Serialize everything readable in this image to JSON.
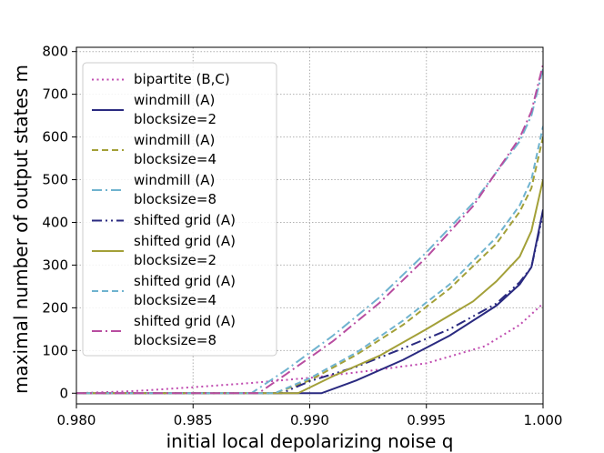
{
  "chart_data": {
    "type": "line",
    "title": "",
    "xlabel": "initial local depolarizing noise q",
    "ylabel": "maximal number of output states m",
    "xlim": [
      0.98,
      1.0
    ],
    "ylim": [
      -25,
      810
    ],
    "xticks": [
      0.98,
      0.985,
      0.99,
      0.995,
      1.0
    ],
    "xtick_labels": [
      "0.980",
      "0.985",
      "0.990",
      "0.995",
      "1.000"
    ],
    "yticks": [
      0,
      100,
      200,
      300,
      400,
      500,
      600,
      700,
      800
    ],
    "ytick_labels": [
      "0",
      "100",
      "200",
      "300",
      "400",
      "500",
      "600",
      "700",
      "800"
    ],
    "grid": true,
    "legend_position": "top-left",
    "series": [
      {
        "name": "bipartite (B,C)",
        "label_lines": [
          "bipartite (B,C)"
        ],
        "color": "#c04cb0",
        "style": "dotted",
        "x": [
          0.98,
          0.9825,
          0.985,
          0.9875,
          0.99,
          0.9925,
          0.995,
          0.9975,
          0.999,
          1.0
        ],
        "y": [
          0,
          5,
          14,
          24,
          36,
          52,
          70,
          110,
          160,
          210
        ]
      },
      {
        "name": "windmill (A) blocksize=2",
        "label_lines": [
          "windmill (A)",
          "blocksize=2"
        ],
        "color": "#2a2a80",
        "style": "solid",
        "x": [
          0.98,
          0.9905,
          0.992,
          0.994,
          0.996,
          0.998,
          0.999,
          0.9995,
          1.0
        ],
        "y": [
          0,
          0,
          30,
          78,
          135,
          205,
          255,
          295,
          430
        ]
      },
      {
        "name": "windmill (A) blocksize=4",
        "label_lines": [
          "windmill (A)",
          "blocksize=4"
        ],
        "color": "#a3a038",
        "style": "dashed",
        "x": [
          0.98,
          0.9885,
          0.99,
          0.992,
          0.994,
          0.996,
          0.998,
          0.999,
          0.9995,
          1.0
        ],
        "y": [
          0,
          0,
          30,
          90,
          160,
          245,
          350,
          425,
          480,
          600
        ]
      },
      {
        "name": "windmill (A) blocksize=8",
        "label_lines": [
          "windmill (A)",
          "blocksize=8"
        ],
        "color": "#6fb3cf",
        "style": "dashdot",
        "x": [
          0.98,
          0.9875,
          0.989,
          0.991,
          0.993,
          0.995,
          0.997,
          0.999,
          0.9995,
          1.0
        ],
        "y": [
          0,
          0,
          55,
          135,
          225,
          330,
          445,
          590,
          650,
          760
        ]
      },
      {
        "name": "shifted grid (A)",
        "label_lines": [
          "shifted grid (A)"
        ],
        "color": "#2a2a80",
        "style": "dashdotdot",
        "x": [
          0.98,
          0.9888,
          0.99,
          0.992,
          0.994,
          0.996,
          0.998,
          0.999,
          0.9995,
          1.0
        ],
        "y": [
          0,
          0,
          28,
          62,
          105,
          150,
          210,
          260,
          295,
          420
        ]
      },
      {
        "name": "shifted grid (A) blocksize=2",
        "label_lines": [
          "shifted grid (A)",
          "blocksize=2"
        ],
        "color": "#a3a038",
        "style": "solid",
        "x": [
          0.98,
          0.9895,
          0.991,
          0.993,
          0.995,
          0.997,
          0.998,
          0.999,
          0.9995,
          1.0
        ],
        "y": [
          0,
          0,
          40,
          88,
          150,
          215,
          262,
          320,
          380,
          500
        ]
      },
      {
        "name": "shifted grid (A) blocksize=4",
        "label_lines": [
          "shifted grid (A)",
          "blocksize=4"
        ],
        "color": "#6fb3cf",
        "style": "dashed",
        "x": [
          0.98,
          0.9885,
          0.99,
          0.992,
          0.994,
          0.996,
          0.998,
          0.999,
          0.9995,
          1.0
        ],
        "y": [
          0,
          0,
          35,
          95,
          170,
          255,
          365,
          440,
          500,
          625
        ]
      },
      {
        "name": "shifted grid (A) blocksize=8",
        "label_lines": [
          "shifted grid (A)",
          "blocksize=8"
        ],
        "color": "#b84da0",
        "style": "dashdot",
        "x": [
          0.98,
          0.9878,
          0.989,
          0.991,
          0.993,
          0.995,
          0.997,
          0.999,
          0.9995,
          1.0
        ],
        "y": [
          0,
          0,
          45,
          122,
          212,
          318,
          438,
          598,
          660,
          770
        ]
      }
    ]
  }
}
